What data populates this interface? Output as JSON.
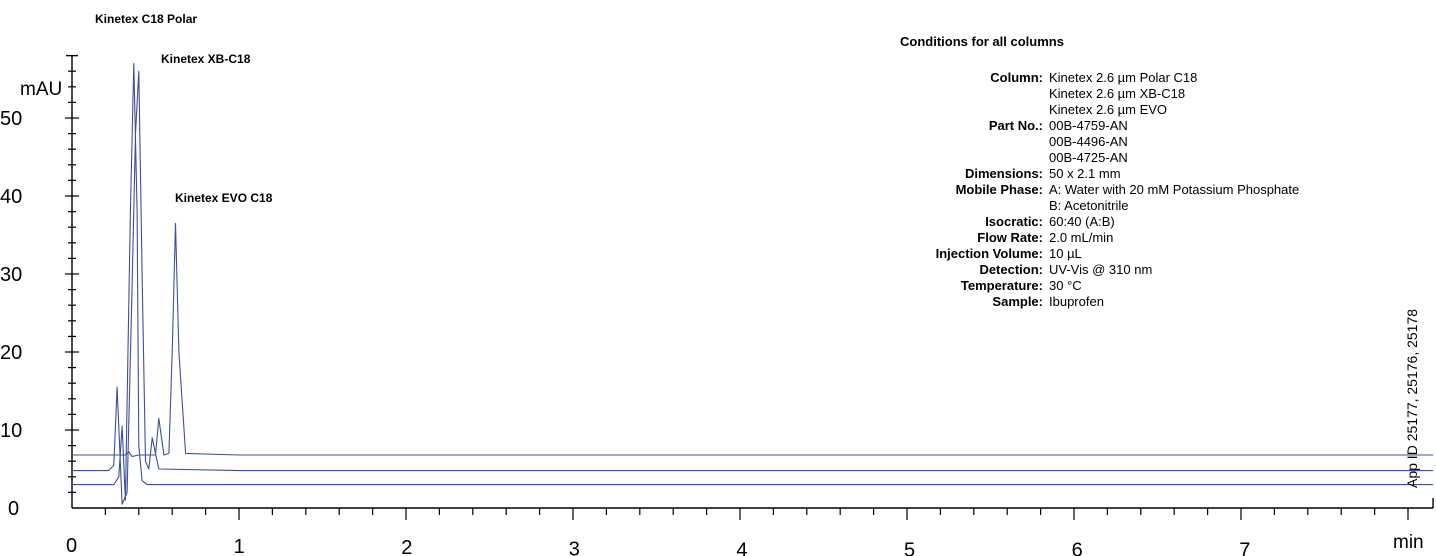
{
  "chart_data": {
    "type": "line",
    "xlabel": "min",
    "ylabel": "mAU",
    "xlim": [
      0,
      8.15
    ],
    "ylim": [
      0,
      58
    ],
    "x_ticks": [
      0,
      1,
      2,
      3,
      4,
      5,
      6,
      7
    ],
    "y_ticks": [
      10,
      20,
      30,
      40,
      50
    ],
    "x_tick_labels": [
      "0",
      "1",
      "2",
      "3",
      "4",
      "5",
      "6",
      "7"
    ],
    "y_tick_labels": [
      "10",
      "20",
      "30",
      "40",
      "50"
    ],
    "y_zero_label": "0",
    "series": [
      {
        "name": "Kinetex C18 Polar",
        "x": [
          0.0,
          0.25,
          0.28,
          0.3,
          0.32,
          0.35,
          0.37,
          0.39,
          0.4,
          0.42,
          0.45,
          0.5,
          1.0,
          8.15
        ],
        "y": [
          3.0,
          3.0,
          4.0,
          10.5,
          1.0,
          38.0,
          57.0,
          38.0,
          8.0,
          3.5,
          3.0,
          3.0,
          3.0,
          3.0
        ]
      },
      {
        "name": "Kinetex XB-C18",
        "x": [
          0.0,
          0.22,
          0.25,
          0.27,
          0.3,
          0.33,
          0.36,
          0.38,
          0.4,
          0.42,
          0.44,
          0.46,
          0.48,
          0.52,
          1.0,
          8.15
        ],
        "y": [
          4.8,
          4.8,
          5.5,
          15.5,
          0.5,
          2.0,
          28.5,
          48.0,
          56.0,
          30.0,
          6.0,
          5.0,
          9.0,
          5.0,
          4.8,
          4.8
        ]
      },
      {
        "name": "Kinetex EVO C18",
        "x": [
          0.0,
          0.28,
          0.32,
          0.34,
          0.36,
          0.4,
          0.45,
          0.5,
          0.52,
          0.55,
          0.58,
          0.6,
          0.62,
          0.64,
          0.68,
          1.0,
          8.15
        ],
        "y": [
          6.8,
          6.8,
          6.8,
          7.2,
          6.6,
          6.8,
          6.8,
          6.8,
          11.5,
          6.8,
          7.0,
          20.0,
          36.5,
          20.0,
          7.0,
          6.8,
          6.8
        ]
      }
    ],
    "peak_labels": [
      {
        "text": "Kinetex C18 Polar"
      },
      {
        "text": "Kinetex XB-C18"
      },
      {
        "text": "Kinetex EVO C18"
      }
    ],
    "side_label": "App ID 25177, 25176, 25178",
    "colors": {
      "trace": "#3d4f9a",
      "axis": "#000000"
    }
  },
  "conditions": {
    "title": "Conditions for all columns",
    "rows": [
      {
        "label": "Column:",
        "values": [
          "Kinetex 2.6 µm Polar C18",
          "Kinetex 2.6 µm XB-C18",
          "Kinetex 2.6 µm EVO"
        ]
      },
      {
        "label": "Part No.:",
        "values": [
          "00B-4759-AN",
          "00B-4496-AN",
          "00B-4725-AN"
        ]
      },
      {
        "label": "Dimensions:",
        "values": [
          "50 x 2.1 mm"
        ]
      },
      {
        "label": "Mobile Phase:",
        "values": [
          "A: Water with 20 mM Potassium Phosphate",
          "B: Acetonitrile"
        ]
      },
      {
        "label": "Isocratic:",
        "values": [
          "60:40 (A:B)"
        ]
      },
      {
        "label": "Flow Rate:",
        "values": [
          "2.0 mL/min"
        ]
      },
      {
        "label": "Injection Volume:",
        "values": [
          "10 µL"
        ]
      },
      {
        "label": "Detection:",
        "values": [
          "UV-Vis @ 310 nm"
        ]
      },
      {
        "label": "Temperature:",
        "values": [
          "30 °C"
        ]
      },
      {
        "label": "Sample:",
        "values": [
          "Ibuprofen"
        ]
      }
    ]
  }
}
